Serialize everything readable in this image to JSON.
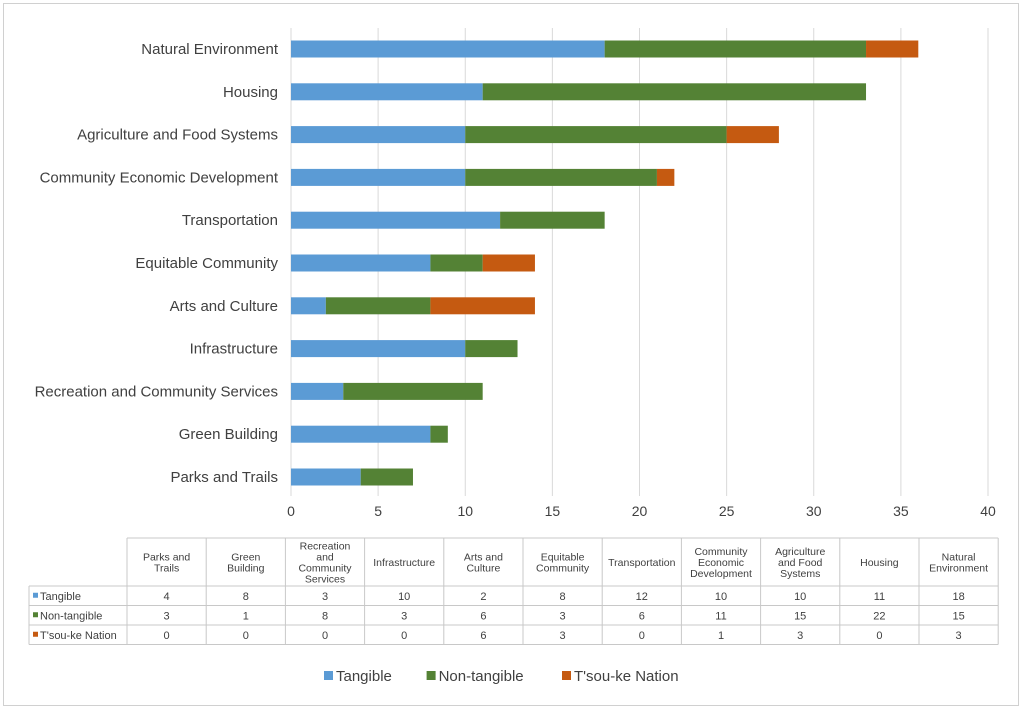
{
  "chart_data": {
    "type": "bar",
    "orientation": "horizontal",
    "stacked": true,
    "categories": [
      "Parks and Trails",
      "Green Building",
      "Recreation and Community Services",
      "Infrastructure",
      "Arts and Culture",
      "Equitable Community",
      "Transportation",
      "Community Economic Development",
      "Agriculture and Food Systems",
      "Housing",
      "Natural Environment"
    ],
    "table_headers": [
      "Parks and Trails",
      "Green Building",
      "Recreation and Community Services",
      "Infrastructure",
      "Arts and Culture",
      "Equitable Community",
      "Transportation",
      "Community Economic Development",
      "Agriculture and Food Systems",
      "Housing",
      "Natural Environment"
    ],
    "series": [
      {
        "name": "Tangible",
        "color": "#5b9bd5",
        "values": [
          4,
          8,
          3,
          10,
          2,
          8,
          12,
          10,
          10,
          11,
          18
        ]
      },
      {
        "name": "Non-tangible",
        "color": "#548235",
        "values": [
          3,
          1,
          8,
          3,
          6,
          3,
          6,
          11,
          15,
          22,
          15
        ]
      },
      {
        "name": "T'sou-ke Nation",
        "color": "#c55a11",
        "values": [
          0,
          0,
          0,
          0,
          6,
          3,
          0,
          1,
          3,
          0,
          3
        ]
      }
    ],
    "xlim": [
      0,
      40
    ],
    "xticks": [
      "0",
      "5",
      "10",
      "15",
      "20",
      "25",
      "30",
      "35",
      "40"
    ],
    "grid": "vertical",
    "legend": "bottom-center",
    "data_table": true
  }
}
